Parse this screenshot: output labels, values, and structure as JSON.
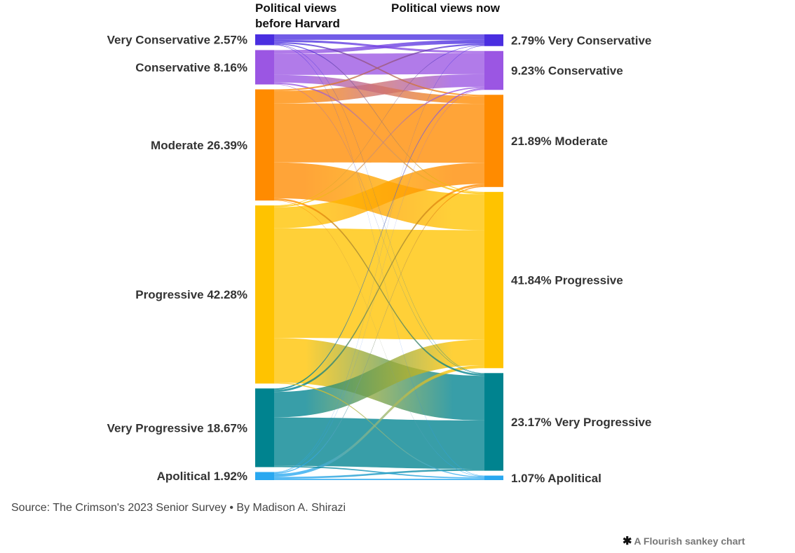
{
  "chart_data": {
    "type": "sankey",
    "left_title_line1": "Political views",
    "left_title_line2": "before Harvard",
    "right_title": "Political views now",
    "colors": {
      "Very Conservative": "#4a2ee0",
      "Conservative": "#9b56e3",
      "Moderate": "#ff8b00",
      "Progressive": "#ffc300",
      "Very Progressive": "#00838f",
      "Apolitical": "#29a8f0"
    },
    "left_nodes": [
      {
        "name": "Very Conservative",
        "value": 2.57,
        "label": "Very Conservative 2.57%"
      },
      {
        "name": "Conservative",
        "value": 8.16,
        "label": "Conservative 8.16%"
      },
      {
        "name": "Moderate",
        "value": 26.39,
        "label": "Moderate 26.39%"
      },
      {
        "name": "Progressive",
        "value": 42.28,
        "label": "Progressive 42.28%"
      },
      {
        "name": "Very Progressive",
        "value": 18.67,
        "label": "Very Progressive 18.67%"
      },
      {
        "name": "Apolitical",
        "value": 1.92,
        "label": "Apolitical 1.92%"
      }
    ],
    "right_nodes": [
      {
        "name": "Very Conservative",
        "value": 2.79,
        "label": "2.79% Very Conservative"
      },
      {
        "name": "Conservative",
        "value": 9.23,
        "label": "9.23% Conservative"
      },
      {
        "name": "Moderate",
        "value": 21.89,
        "label": "21.89% Moderate"
      },
      {
        "name": "Progressive",
        "value": 41.84,
        "label": "41.84% Progressive"
      },
      {
        "name": "Very Progressive",
        "value": 23.17,
        "label": "23.17% Very Progressive"
      },
      {
        "name": "Apolitical",
        "value": 1.07,
        "label": "1.07% Apolitical"
      }
    ],
    "flows": [
      {
        "source": "Very Conservative",
        "target": "Very Conservative",
        "value": 1.3
      },
      {
        "source": "Very Conservative",
        "target": "Conservative",
        "value": 0.5
      },
      {
        "source": "Very Conservative",
        "target": "Moderate",
        "value": 0.35
      },
      {
        "source": "Very Conservative",
        "target": "Progressive",
        "value": 0.22
      },
      {
        "source": "Very Conservative",
        "target": "Very Progressive",
        "value": 0.1
      },
      {
        "source": "Very Conservative",
        "target": "Apolitical",
        "value": 0.1
      },
      {
        "source": "Conservative",
        "target": "Very Conservative",
        "value": 0.9
      },
      {
        "source": "Conservative",
        "target": "Conservative",
        "value": 5.0
      },
      {
        "source": "Conservative",
        "target": "Moderate",
        "value": 1.8
      },
      {
        "source": "Conservative",
        "target": "Progressive",
        "value": 0.36
      },
      {
        "source": "Conservative",
        "target": "Very Progressive",
        "value": 0.1
      },
      {
        "source": "Moderate",
        "target": "Very Conservative",
        "value": 0.35
      },
      {
        "source": "Moderate",
        "target": "Conservative",
        "value": 3.0
      },
      {
        "source": "Moderate",
        "target": "Moderate",
        "value": 14.0
      },
      {
        "source": "Moderate",
        "target": "Progressive",
        "value": 8.5
      },
      {
        "source": "Moderate",
        "target": "Very Progressive",
        "value": 0.44
      },
      {
        "source": "Moderate",
        "target": "Apolitical",
        "value": 0.1
      },
      {
        "source": "Progressive",
        "target": "Very Conservative",
        "value": 0.14
      },
      {
        "source": "Progressive",
        "target": "Conservative",
        "value": 0.3
      },
      {
        "source": "Progressive",
        "target": "Moderate",
        "value": 5.0
      },
      {
        "source": "Progressive",
        "target": "Progressive",
        "value": 26.0
      },
      {
        "source": "Progressive",
        "target": "Very Progressive",
        "value": 10.6
      },
      {
        "source": "Progressive",
        "target": "Apolitical",
        "value": 0.24
      },
      {
        "source": "Very Progressive",
        "target": "Conservative",
        "value": 0.33
      },
      {
        "source": "Very Progressive",
        "target": "Moderate",
        "value": 0.5
      },
      {
        "source": "Very Progressive",
        "target": "Progressive",
        "value": 6.05
      },
      {
        "source": "Very Progressive",
        "target": "Very Progressive",
        "value": 11.5
      },
      {
        "source": "Very Progressive",
        "target": "Apolitical",
        "value": 0.29
      },
      {
        "source": "Apolitical",
        "target": "Very Conservative",
        "value": 0.1
      },
      {
        "source": "Apolitical",
        "target": "Conservative",
        "value": 0.1
      },
      {
        "source": "Apolitical",
        "target": "Moderate",
        "value": 0.24
      },
      {
        "source": "Apolitical",
        "target": "Progressive",
        "value": 0.71
      },
      {
        "source": "Apolitical",
        "target": "Very Progressive",
        "value": 0.43
      },
      {
        "source": "Apolitical",
        "target": "Apolitical",
        "value": 0.34
      }
    ]
  },
  "footer": {
    "source": "Source: The Crimson's 2023 Senior Survey • By Madison A. Shirazi",
    "credit": "A Flourish sankey chart",
    "credit_icon": "flourish-asterisk-icon"
  }
}
